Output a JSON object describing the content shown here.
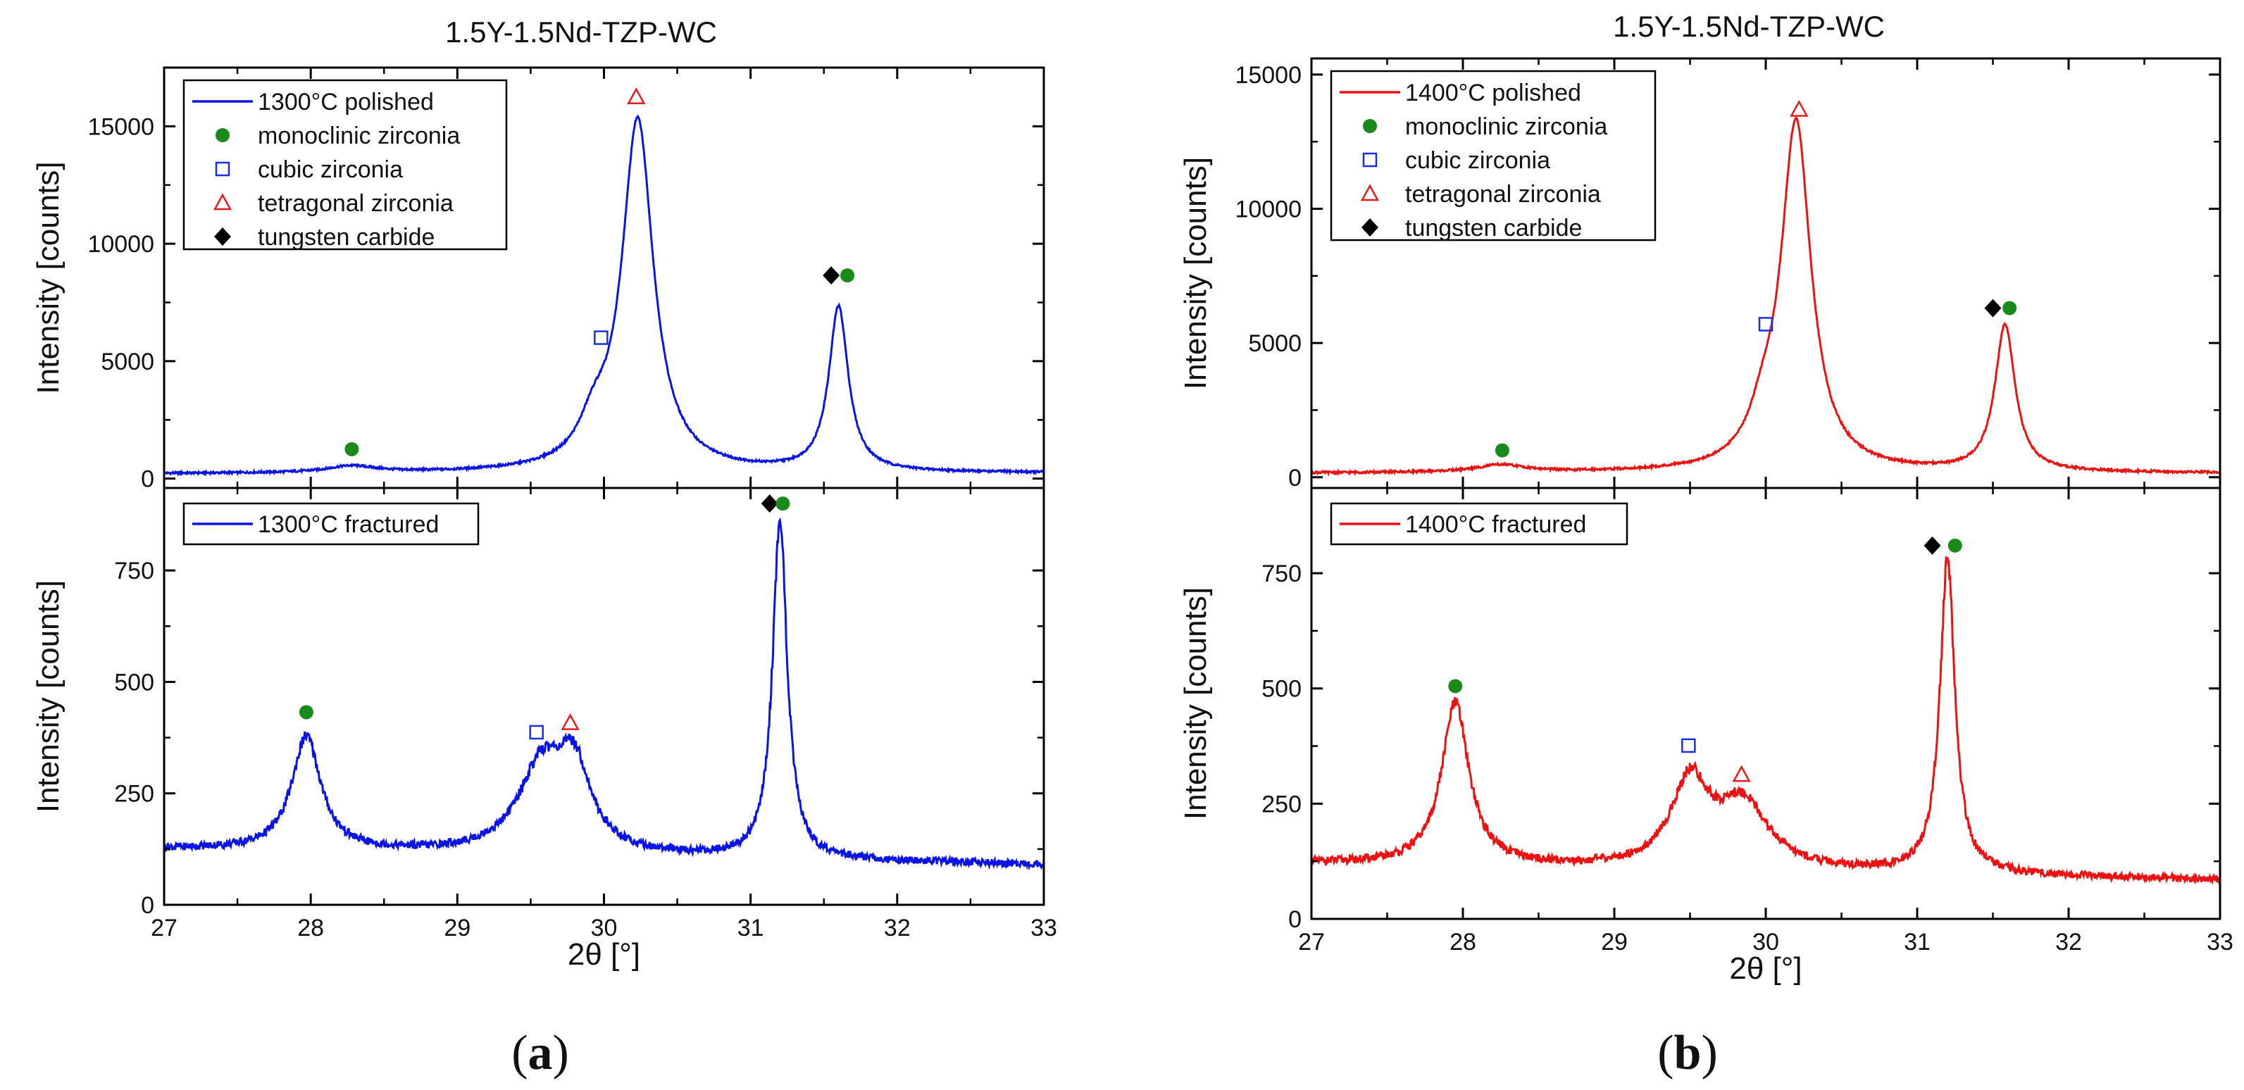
{
  "chart_data": [
    {
      "type": "line",
      "title": "1.5Y-1.5Nd-TZP-WC",
      "caption": "a",
      "color": "#0a14e6",
      "xlabel": "2θ [°]",
      "xlim": [
        27,
        33
      ],
      "xticks": [
        "27",
        "28",
        "29",
        "30",
        "31",
        "32",
        "33"
      ],
      "legend_entries": [
        "monoclinic zirconia",
        "cubic zirconia",
        "tetragonal zirconia",
        "tungsten carbide"
      ],
      "panels": [
        {
          "ylabel": "Intensity [counts]",
          "ylim": [
            -400,
            17500
          ],
          "yticks": [
            0,
            5000,
            10000,
            15000
          ],
          "series_name": "1300°C polished",
          "legend_style": "full",
          "peaks": [
            [
              28.28,
              280,
              0.2
            ],
            [
              29.93,
              1400,
              0.12
            ],
            [
              30.23,
              14950,
              0.13
            ],
            [
              31.6,
              7000,
              0.08
            ]
          ],
          "baseline": [
            [
              27,
              200
            ],
            [
              33,
              230
            ]
          ],
          "markers": [
            {
              "kind": "monoclinic",
              "x": 28.28,
              "y": 1250
            },
            {
              "kind": "cubic",
              "x": 29.98,
              "y": 6000
            },
            {
              "kind": "tetragonal",
              "x": 30.22,
              "y": 16250
            },
            {
              "kind": "tungsten",
              "x": 31.55,
              "y": 8650
            },
            {
              "kind": "monoclinic",
              "x": 31.66,
              "y": 8650
            }
          ]
        },
        {
          "ylabel": "Intensity [counts]",
          "ylim": [
            0,
            935
          ],
          "yticks": [
            0,
            250,
            500,
            750
          ],
          "series_name": "1300°C fractured",
          "legend_style": "short",
          "peaks": [
            [
              27.97,
              255,
              0.12
            ],
            [
              29.58,
              195,
              0.2
            ],
            [
              29.8,
              165,
              0.13
            ],
            [
              31.2,
              760,
              0.06
            ]
          ],
          "baseline": [
            [
              27,
              125
            ],
            [
              33,
              90
            ]
          ],
          "markers": [
            {
              "kind": "monoclinic",
              "x": 27.97,
              "y": 432
            },
            {
              "kind": "cubic",
              "x": 29.54,
              "y": 387
            },
            {
              "kind": "tetragonal",
              "x": 29.77,
              "y": 408
            },
            {
              "kind": "tungsten",
              "x": 31.13,
              "y": 900
            },
            {
              "kind": "monoclinic",
              "x": 31.22,
              "y": 900
            }
          ]
        }
      ]
    },
    {
      "type": "line",
      "title": "1.5Y-1.5Nd-TZP-WC",
      "caption": "b",
      "color": "#ee1111",
      "xlabel": "2θ [°]",
      "xlim": [
        27,
        33
      ],
      "xticks": [
        "27",
        "28",
        "29",
        "30",
        "31",
        "32",
        "33"
      ],
      "legend_entries": [
        "monoclinic zirconia",
        "cubic zirconia",
        "tetragonal zirconia",
        "tungsten carbide"
      ],
      "panels": [
        {
          "ylabel": "Intensity [counts]",
          "ylim": [
            -400,
            15600
          ],
          "yticks": [
            0,
            5000,
            10000,
            15000
          ],
          "series_name": "1400°C polished",
          "legend_style": "full",
          "peaks": [
            [
              28.25,
              270,
              0.2
            ],
            [
              29.98,
              1200,
              0.11
            ],
            [
              30.2,
              12950,
              0.12
            ],
            [
              31.58,
              5450,
              0.08
            ]
          ],
          "baseline": [
            [
              27,
              150
            ],
            [
              33,
              150
            ]
          ],
          "markers": [
            {
              "kind": "monoclinic",
              "x": 28.26,
              "y": 1000
            },
            {
              "kind": "cubic",
              "x": 30.0,
              "y": 5700
            },
            {
              "kind": "tetragonal",
              "x": 30.22,
              "y": 13700
            },
            {
              "kind": "tungsten",
              "x": 31.5,
              "y": 6300
            },
            {
              "kind": "monoclinic",
              "x": 31.61,
              "y": 6300
            }
          ]
        },
        {
          "ylabel": "Intensity [counts]",
          "ylim": [
            0,
            935
          ],
          "yticks": [
            0,
            250,
            500,
            750
          ],
          "series_name": "1400°C fractured",
          "legend_style": "short",
          "peaks": [
            [
              27.95,
              350,
              0.11
            ],
            [
              29.5,
              185,
              0.15
            ],
            [
              29.85,
              140,
              0.2
            ],
            [
              31.2,
              680,
              0.06
            ]
          ],
          "baseline": [
            [
              27,
              120
            ],
            [
              33,
              85
            ]
          ],
          "markers": [
            {
              "kind": "monoclinic",
              "x": 27.95,
              "y": 505
            },
            {
              "kind": "cubic",
              "x": 29.49,
              "y": 376
            },
            {
              "kind": "tetragonal",
              "x": 29.84,
              "y": 313
            },
            {
              "kind": "tungsten",
              "x": 31.1,
              "y": 810
            },
            {
              "kind": "monoclinic",
              "x": 31.25,
              "y": 810
            }
          ]
        }
      ]
    }
  ]
}
